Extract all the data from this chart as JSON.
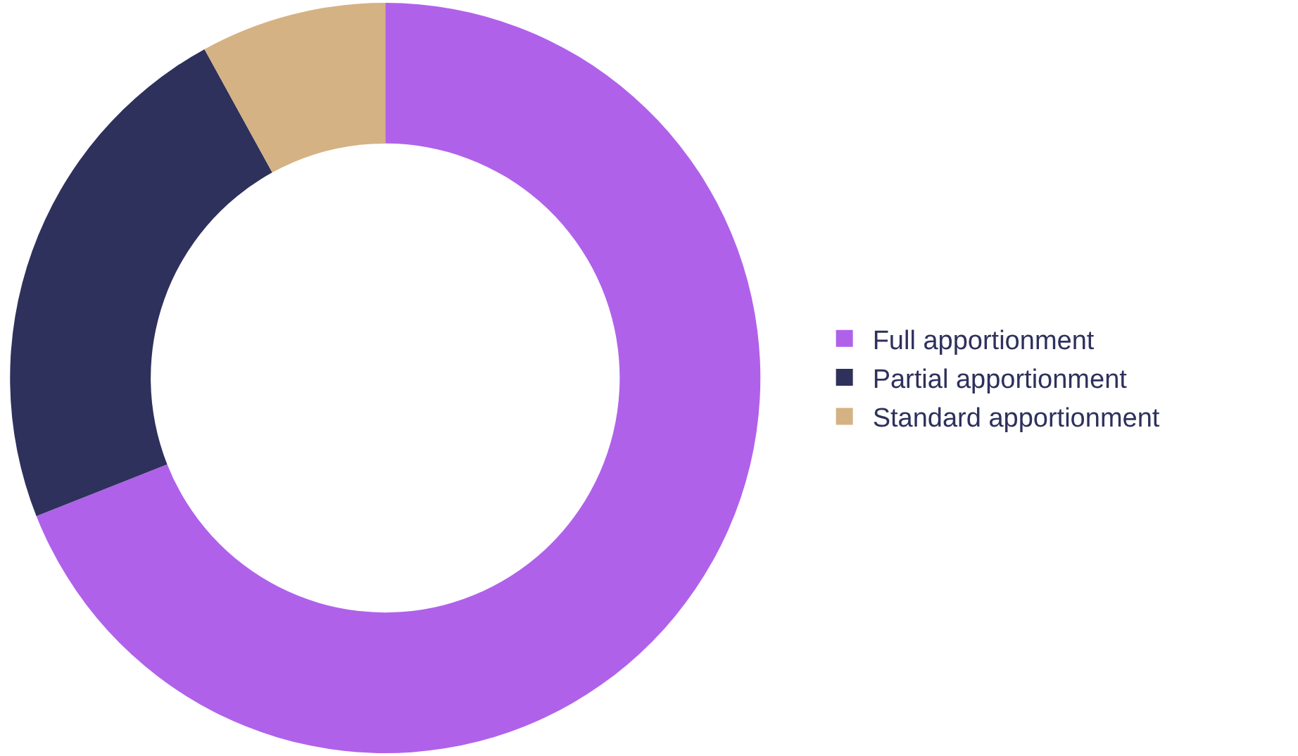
{
  "chart_data": {
    "type": "donut",
    "categories": [
      "Full apportionment",
      "Partial apportionment",
      "Standard apportionment"
    ],
    "values": [
      69,
      23,
      8
    ],
    "colors": [
      "#b061ea",
      "#2e315c",
      "#d4b283"
    ],
    "legend": "right"
  }
}
